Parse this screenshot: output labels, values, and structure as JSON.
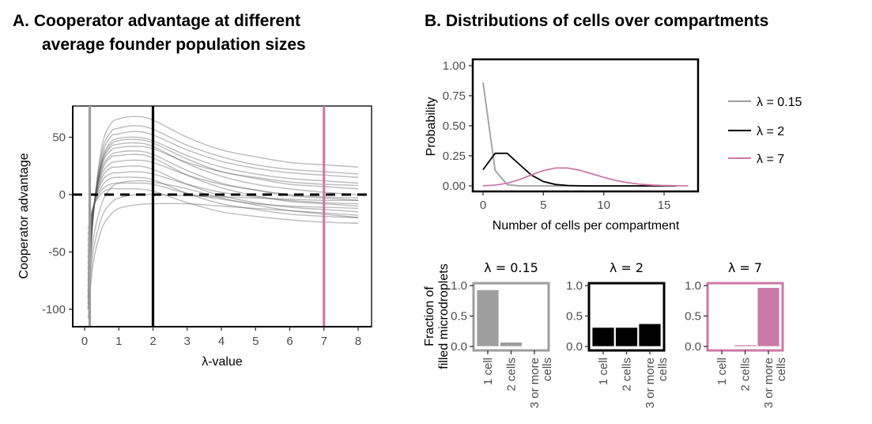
{
  "panel_a": {
    "title_line1": "A.  Cooperator advantage at different",
    "title_line2": "average founder population sizes"
  },
  "panel_b": {
    "title": "B.  Distributions of cells over compartments"
  },
  "chart_data": [
    {
      "type": "line",
      "panel": "A",
      "xlabel": "λ-value",
      "ylabel": "Cooperator advantage",
      "xlim": [
        -0.3,
        8.4
      ],
      "ylim": [
        -115,
        77
      ],
      "xticks": [
        0,
        1,
        2,
        3,
        4,
        5,
        6,
        7,
        8
      ],
      "yticks": [
        -100,
        -50,
        0,
        50
      ],
      "grid": false,
      "x": [
        0.1,
        0.25,
        0.5,
        0.75,
        1,
        1.5,
        2,
        3,
        4,
        5,
        6,
        7,
        8
      ],
      "series": [
        {
          "values": [
            -100,
            -20,
            41,
            61,
            66,
            68,
            65,
            50,
            39,
            33,
            28,
            26,
            24
          ]
        },
        {
          "values": [
            -95,
            -20,
            36,
            54,
            58,
            60,
            57,
            43,
            33,
            26,
            22,
            20,
            18
          ]
        },
        {
          "values": [
            -90,
            -20,
            32,
            50,
            53,
            55,
            52,
            39,
            29,
            23,
            19,
            17,
            15
          ]
        },
        {
          "values": [
            -85,
            -19,
            29,
            45,
            49,
            50,
            47,
            34,
            24,
            18,
            14,
            12,
            10
          ]
        },
        {
          "values": [
            -80,
            -18,
            28,
            43,
            47,
            48,
            45,
            31,
            20,
            14,
            9,
            7,
            5
          ]
        },
        {
          "values": [
            -75,
            -17,
            26,
            41,
            44,
            45,
            42,
            27,
            16,
            9,
            5,
            2,
            0
          ]
        },
        {
          "values": [
            -70,
            -15,
            25,
            38,
            41,
            42,
            40,
            28,
            20,
            15,
            11,
            9,
            8
          ]
        },
        {
          "values": [
            -65,
            -15,
            22,
            34,
            37,
            38,
            35,
            21,
            10,
            4,
            -1,
            -3,
            -5
          ]
        },
        {
          "values": [
            -60,
            -14,
            20,
            32,
            34,
            35,
            32,
            17,
            6,
            -1,
            -6,
            -8,
            -10
          ]
        },
        {
          "values": [
            -55,
            -13,
            17,
            27,
            29,
            30,
            28,
            17,
            9,
            4,
            0,
            -2,
            -3
          ]
        },
        {
          "values": [
            -50,
            -13,
            14,
            23,
            24,
            25,
            22,
            9,
            -1,
            -7,
            -11,
            -13,
            -15
          ]
        },
        {
          "values": [
            -45,
            -12,
            11,
            18,
            19,
            20,
            18,
            9,
            2,
            -2,
            -5,
            -7,
            -8
          ]
        },
        {
          "values": [
            -40,
            -12,
            7,
            14,
            15,
            15,
            13,
            1,
            -8,
            -13,
            -17,
            -19,
            -20
          ]
        },
        {
          "values": [
            -35,
            -11,
            4,
            9,
            10,
            10,
            9,
            1,
            -4,
            -8,
            -10,
            -11,
            -12
          ]
        },
        {
          "values": [
            -30,
            -11,
            1,
            5,
            5,
            5,
            3,
            -7,
            -15,
            -19,
            -22,
            -24,
            -25
          ]
        },
        {
          "values": [
            -108,
            -60,
            -30,
            -18,
            -12,
            -9,
            -8,
            -8,
            -10,
            -12,
            -14,
            -16,
            -18
          ]
        },
        {
          "values": [
            -100,
            -50,
            -20,
            -8,
            -3,
            0,
            0,
            -1,
            -2,
            -3,
            -4,
            -5,
            -5
          ]
        },
        {
          "values": [
            -90,
            -40,
            -8,
            5,
            10,
            12,
            11,
            5,
            -3,
            -9,
            -14,
            -17,
            -20
          ]
        }
      ],
      "reference_lines": {
        "horizontal": {
          "y": 0,
          "style": "dashed",
          "color": "#000000"
        },
        "vertical": [
          {
            "x": 0.15,
            "color": "#9e9e9e"
          },
          {
            "x": 2,
            "color": "#000000"
          },
          {
            "x": 7,
            "color": "#cc79a7"
          }
        ]
      },
      "line_color": "#555555"
    },
    {
      "type": "line",
      "panel": "B-top",
      "xlabel": "Number of cells per compartment",
      "ylabel": "Probability",
      "xlim": [
        -0.8,
        17.8
      ],
      "ylim": [
        -0.05,
        1.05
      ],
      "xticks": [
        0,
        5,
        10,
        15
      ],
      "yticks": [
        0,
        0.25,
        0.5,
        0.75,
        1
      ],
      "ytick_labels": [
        "0.00",
        "0.25",
        "0.50",
        "0.75",
        "1.00"
      ],
      "grid": false,
      "legend_position": "right",
      "series": [
        {
          "name": "λ = 0.15",
          "color": "#9e9e9e",
          "x": [
            0,
            1,
            2,
            3,
            4,
            5,
            6,
            7,
            8,
            9,
            10,
            11,
            12,
            13,
            14,
            15,
            16
          ],
          "values": [
            0.861,
            0.129,
            0.01,
            0.0005,
            0,
            0,
            0,
            0,
            0,
            0,
            0,
            0,
            0,
            0,
            0,
            0,
            0
          ]
        },
        {
          "name": "λ = 2",
          "color": "#000000",
          "x": [
            0,
            1,
            2,
            3,
            4,
            5,
            6,
            7,
            8,
            9,
            10,
            11,
            12,
            13,
            14,
            15,
            16
          ],
          "values": [
            0.135,
            0.271,
            0.271,
            0.18,
            0.09,
            0.036,
            0.012,
            0.0034,
            0.0009,
            0.0002,
            0,
            0,
            0,
            0,
            0,
            0,
            0
          ]
        },
        {
          "name": "λ = 7",
          "color": "#cc79a7",
          "x": [
            0,
            1,
            2,
            3,
            4,
            5,
            6,
            7,
            8,
            9,
            10,
            11,
            12,
            13,
            14,
            15,
            16,
            17
          ],
          "values": [
            0.0009,
            0.0064,
            0.0223,
            0.0521,
            0.0912,
            0.1277,
            0.149,
            0.149,
            0.1304,
            0.1014,
            0.071,
            0.0452,
            0.0263,
            0.0142,
            0.0071,
            0.0033,
            0.0014,
            0.0006
          ]
        }
      ]
    },
    {
      "type": "bar",
      "panel": "B-bottom",
      "ylabel_line1": "Fraction of",
      "ylabel_line2": "filled microdroplets",
      "categories": [
        [
          "1 cell"
        ],
        [
          "2 cells"
        ],
        [
          "3 or more",
          "cells"
        ]
      ],
      "ylim": [
        -0.05,
        1.05
      ],
      "yticks": [
        0,
        0.5,
        1
      ],
      "ytick_labels": [
        "0.0",
        "0.5",
        "1.0"
      ],
      "facets": [
        {
          "title": "λ = 0.15",
          "color": "#9e9e9e",
          "values": [
            0.93,
            0.07,
            0.004
          ]
        },
        {
          "title": "λ = 2",
          "color": "#000000",
          "values": [
            0.313,
            0.313,
            0.374
          ]
        },
        {
          "title": "λ = 7",
          "color": "#cc79a7",
          "values": [
            0.007,
            0.026,
            0.967
          ]
        }
      ]
    }
  ]
}
